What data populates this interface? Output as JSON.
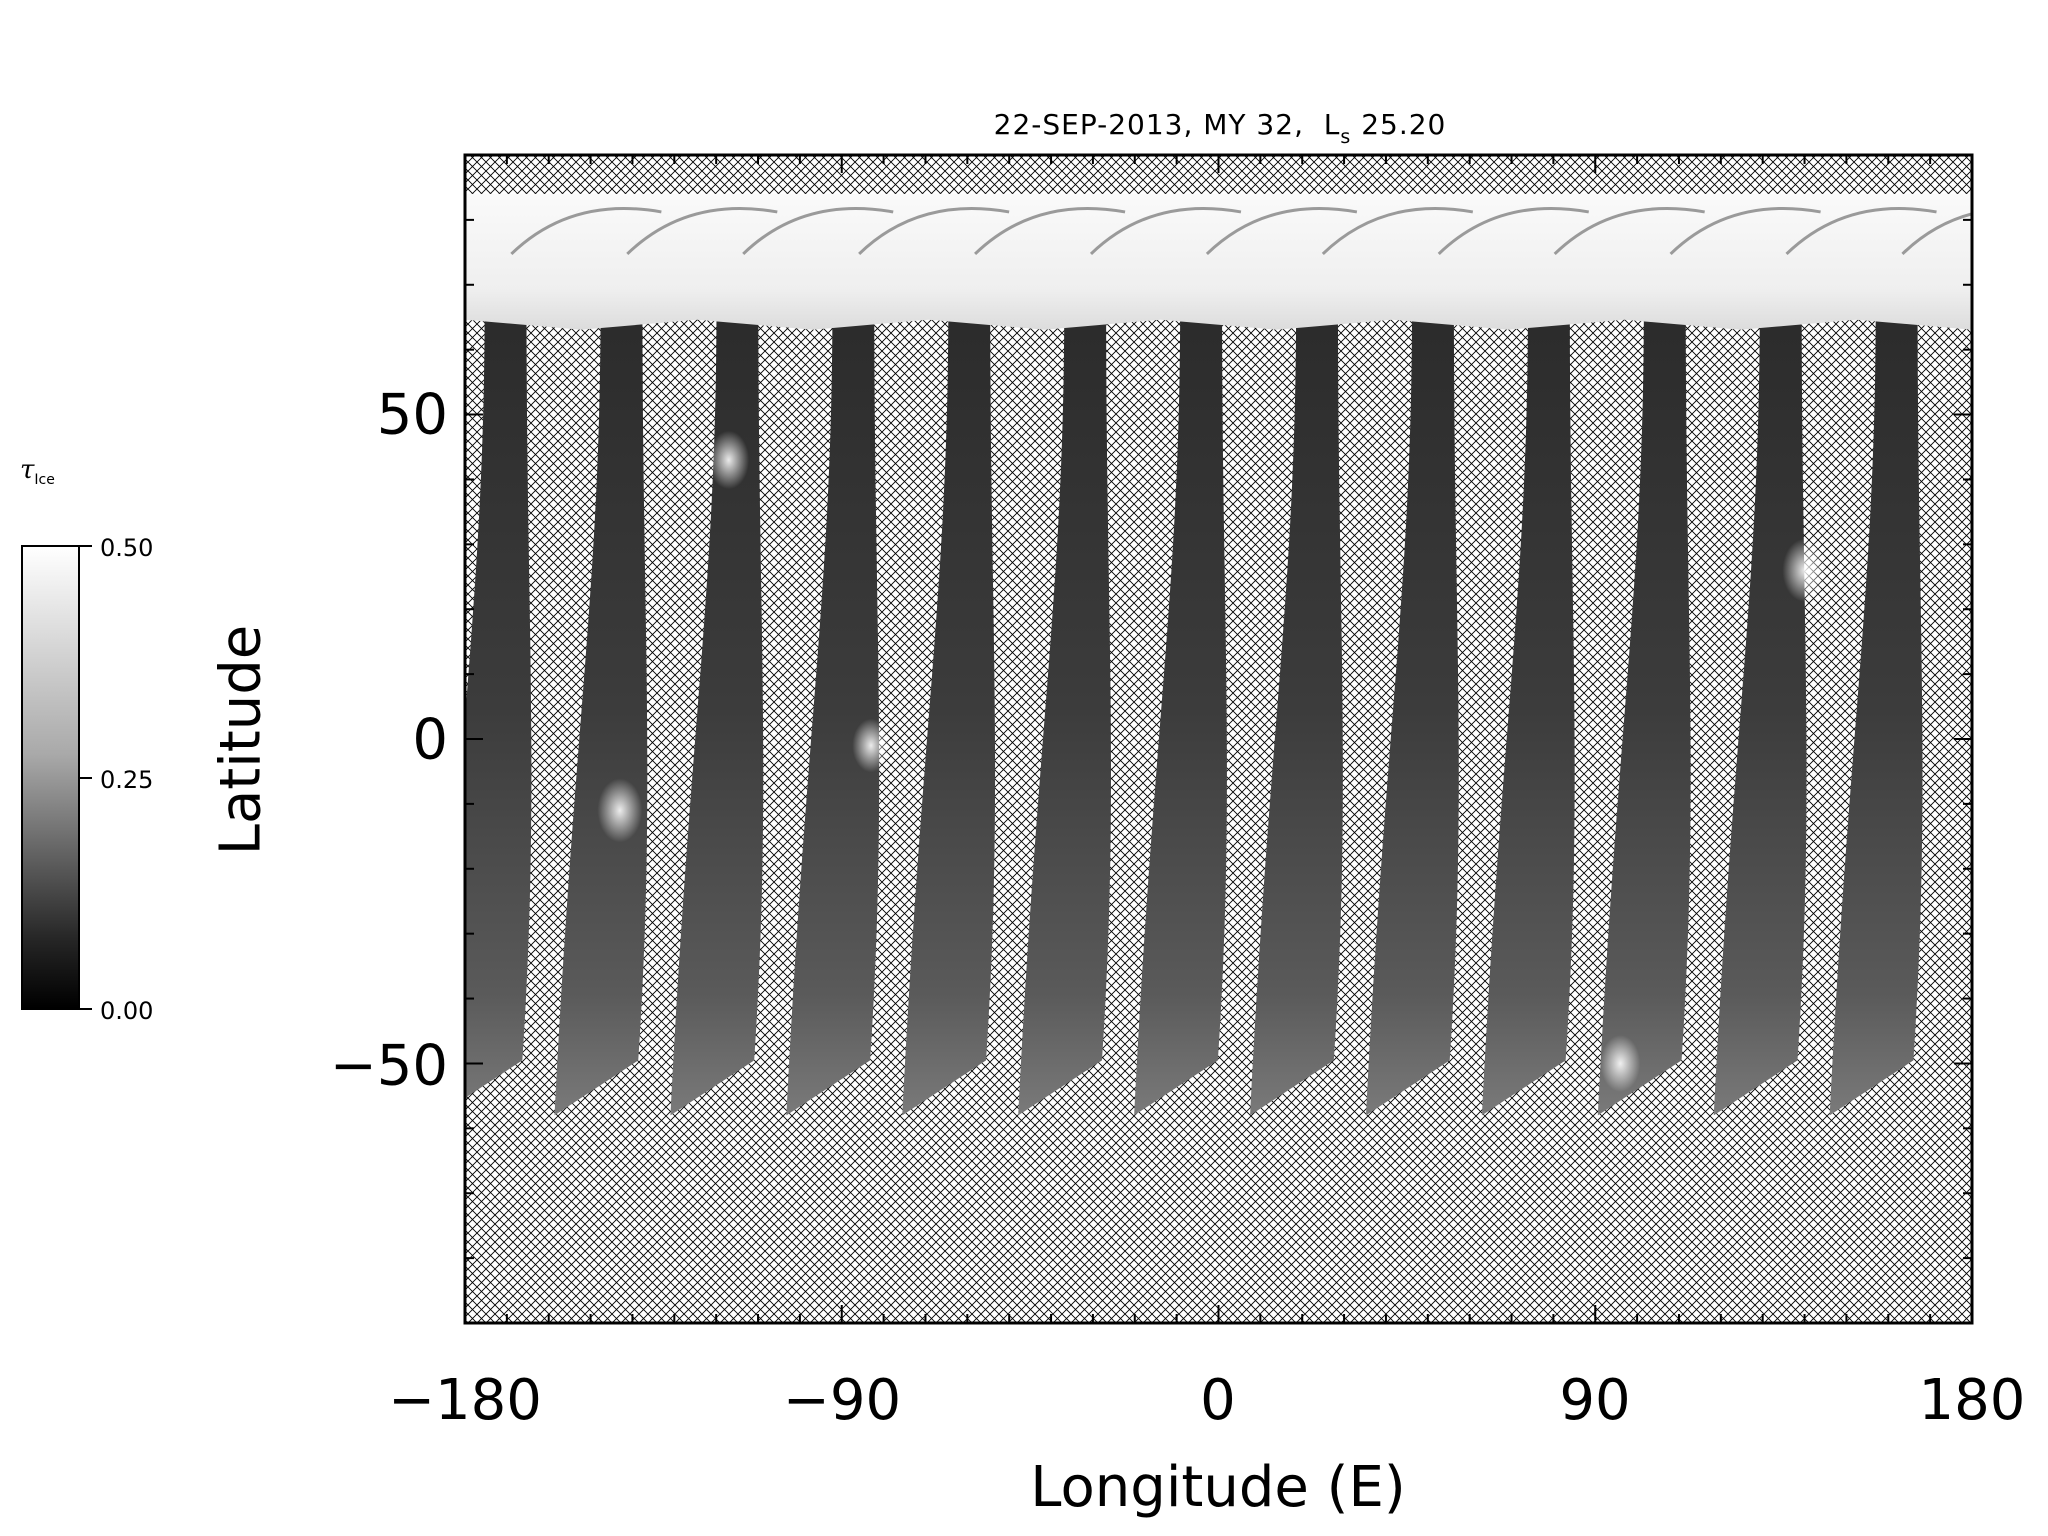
{
  "title": {
    "date": "22-SEP-2013",
    "mars_year": "MY 32",
    "ls_symbol": "L",
    "ls_subscript": "s",
    "ls_value": "25.20"
  },
  "colorbar": {
    "symbol": "τ",
    "symbol_subscript": "Ice",
    "min": 0.0,
    "max": 0.5,
    "ticks": [
      "0.50",
      "0.25",
      "0.00"
    ],
    "colormap": "grayscale"
  },
  "axes": {
    "xlabel": "Longitude (E)",
    "ylabel": "Latitude",
    "xlim": [
      -180,
      180
    ],
    "ylim": [
      -90,
      90
    ],
    "xticks": [
      "−180",
      "−90",
      "0",
      "90",
      "180"
    ],
    "yticks": [
      "50",
      "0",
      "−50"
    ],
    "no_data_fill": "crosshatch"
  },
  "colors": {
    "hatch": "#000000",
    "swath_dark": "#2a2a2a",
    "swath_mid": "#4d4d4d",
    "polar_hood": "#f4f4f4"
  },
  "swaths": {
    "count": 13,
    "south_edge_latitude": -58,
    "polar_hood_edge_latitude": 64,
    "cloud_features": [
      {
        "lon": -143,
        "lat": -11,
        "tau": 0.45
      },
      {
        "lon": -117,
        "lat": 43,
        "tau": 0.38
      },
      {
        "lon": -83,
        "lat": -1,
        "tau": 0.32
      },
      {
        "lon": 140,
        "lat": 26,
        "tau": 0.44
      },
      {
        "lon": 96,
        "lat": -50,
        "tau": 0.36
      }
    ]
  }
}
